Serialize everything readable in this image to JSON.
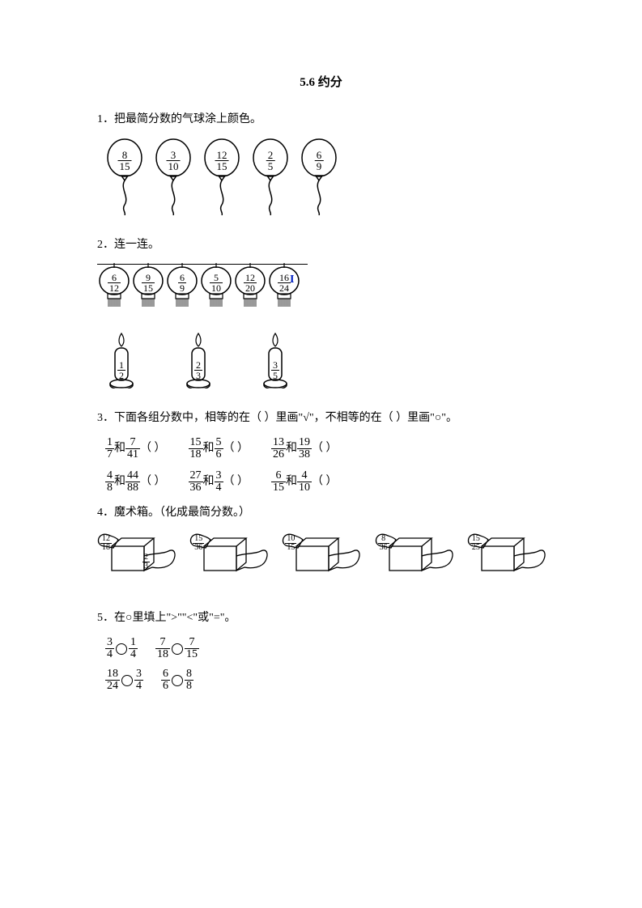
{
  "title": "5.6  约分",
  "q1": {
    "text": "1．把最简分数的气球涂上颜色。",
    "balloons": [
      {
        "n": "8",
        "d": "15"
      },
      {
        "n": "3",
        "d": "10"
      },
      {
        "n": "12",
        "d": "15"
      },
      {
        "n": "2",
        "d": "5"
      },
      {
        "n": "6",
        "d": "9"
      }
    ]
  },
  "q2": {
    "text": "2．连一连。",
    "lanterns": [
      {
        "n": "6",
        "d": "12"
      },
      {
        "n": "9",
        "d": "15"
      },
      {
        "n": "6",
        "d": "9"
      },
      {
        "n": "5",
        "d": "10"
      },
      {
        "n": "12",
        "d": "20"
      },
      {
        "n": "16",
        "d": "24"
      }
    ],
    "candles": [
      {
        "n": "1",
        "d": "2"
      },
      {
        "n": "2",
        "d": "3"
      },
      {
        "n": "3",
        "d": "5"
      }
    ]
  },
  "q3": {
    "text": "3．下面各组分数中，相等的在（  ）里画\"√\"，不相等的在（  ）里画\"○\"。",
    "row1": [
      {
        "a": {
          "n": "1",
          "d": "7"
        },
        "b": {
          "n": "7",
          "d": "41"
        }
      },
      {
        "a": {
          "n": "15",
          "d": "18"
        },
        "b": {
          "n": "5",
          "d": "6"
        }
      },
      {
        "a": {
          "n": "13",
          "d": "26"
        },
        "b": {
          "n": "19",
          "d": "38"
        }
      }
    ],
    "row2": [
      {
        "a": {
          "n": "4",
          "d": "8"
        },
        "b": {
          "n": "44",
          "d": "88"
        }
      },
      {
        "a": {
          "n": "27",
          "d": "36"
        },
        "b": {
          "n": "3",
          "d": "4"
        }
      },
      {
        "a": {
          "n": "6",
          "d": "15"
        },
        "b": {
          "n": "4",
          "d": "10"
        }
      }
    ],
    "and": "和",
    "paren": "（    ）"
  },
  "q4": {
    "text": "4．魔术箱。（化成最简分数。）",
    "boxes": [
      {
        "in": {
          "n": "12",
          "d": "18"
        },
        "out": {
          "n": "2",
          "d": "3"
        }
      },
      {
        "in": {
          "n": "15",
          "d": "36"
        },
        "out": null
      },
      {
        "in": {
          "n": "10",
          "d": "15"
        },
        "out": null
      },
      {
        "in": {
          "n": "8",
          "d": "36"
        },
        "out": null
      },
      {
        "in": {
          "n": "15",
          "d": "25"
        },
        "out": null
      }
    ]
  },
  "q5": {
    "text": "5．在○里填上\">\"\"<\"或\"=\"。",
    "row1": [
      {
        "a": {
          "n": "3",
          "d": "4"
        },
        "b": {
          "n": "1",
          "d": "4"
        }
      },
      {
        "a": {
          "n": "7",
          "d": "18"
        },
        "b": {
          "n": "7",
          "d": "15"
        }
      }
    ],
    "row2": [
      {
        "a": {
          "n": "18",
          "d": "24"
        },
        "b": {
          "n": "3",
          "d": "4"
        }
      },
      {
        "a": {
          "n": "6",
          "d": "6"
        },
        "b": {
          "n": "8",
          "d": "8"
        }
      }
    ]
  },
  "svg": {
    "balloon_stroke": "#000",
    "cursor_color": "#0020c2"
  }
}
